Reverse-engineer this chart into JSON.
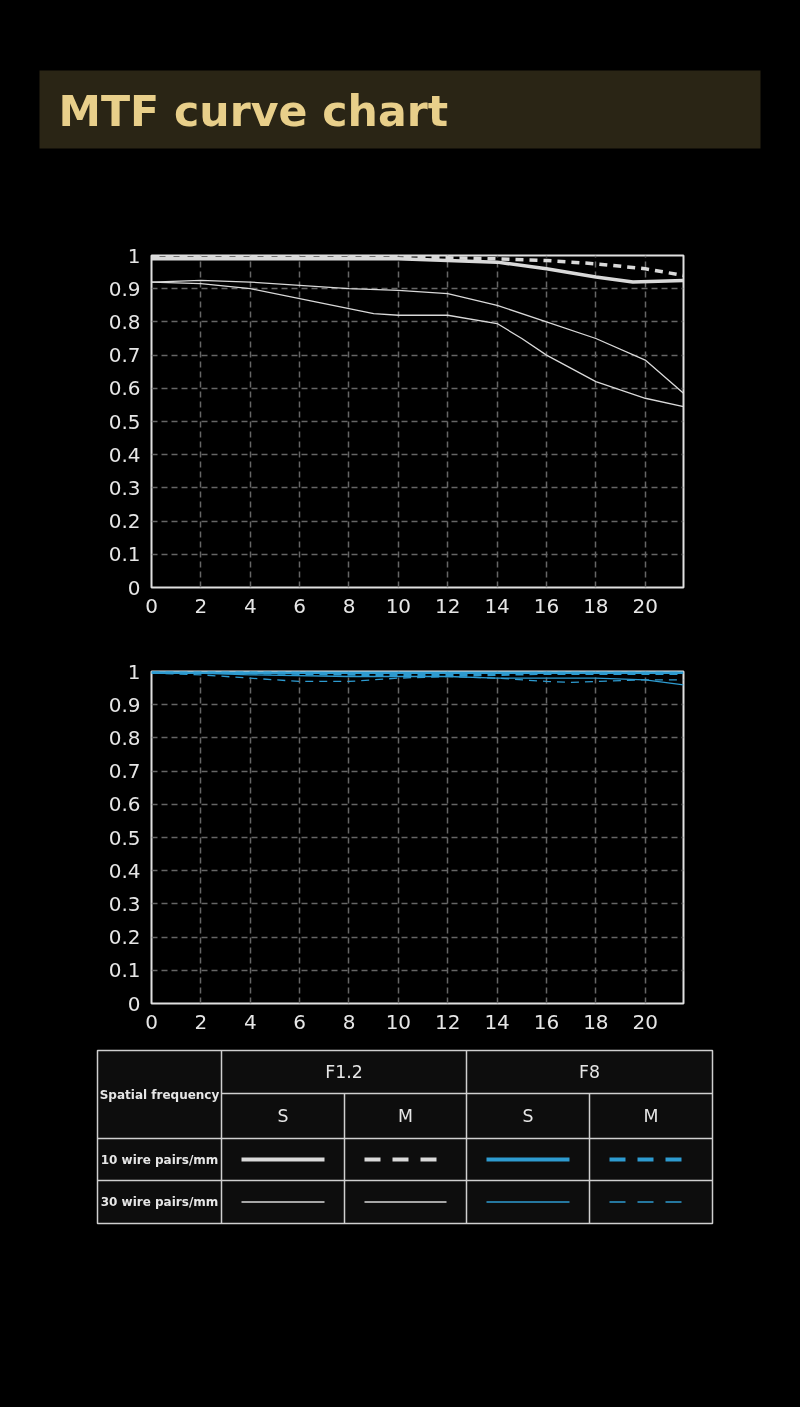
{
  "chart_data": [
    {
      "type": "line",
      "title": "MTF curve chart",
      "xlim": [
        0,
        21.55
      ],
      "ylim": [
        0,
        1
      ],
      "xticks": [
        0,
        2,
        4,
        6,
        8,
        10,
        12,
        14,
        16,
        18,
        20
      ],
      "yticks": [
        0,
        0.1,
        0.2,
        0.3,
        0.4,
        0.5,
        0.6,
        0.7,
        0.8,
        0.9,
        1
      ],
      "grid": true,
      "series": [
        {
          "color": "#d9d9d9",
          "line_style": "solid",
          "x": [
            0,
            2,
            4,
            6,
            8,
            10,
            12,
            14,
            16,
            18,
            19.5,
            21.55
          ],
          "values": [
            0.99,
            0.99,
            0.99,
            0.99,
            0.99,
            0.99,
            0.985,
            0.98,
            0.96,
            0.935,
            0.92,
            0.925
          ]
        },
        {
          "color": "#d9d9d9",
          "line_style": "dashed",
          "x": [
            0,
            2,
            4,
            6,
            8,
            10,
            12,
            14,
            16,
            18,
            20,
            21.55
          ],
          "values": [
            0.995,
            0.995,
            0.995,
            0.995,
            0.995,
            0.995,
            0.993,
            0.99,
            0.985,
            0.975,
            0.96,
            0.94
          ]
        },
        {
          "color": "#d9d9d9",
          "line_style": "solid",
          "x": [
            0,
            2,
            4,
            6,
            8,
            10,
            12,
            14,
            16,
            18,
            20,
            21.55
          ],
          "values": [
            0.92,
            0.925,
            0.92,
            0.91,
            0.9,
            0.895,
            0.885,
            0.85,
            0.8,
            0.75,
            0.685,
            0.585
          ]
        },
        {
          "color": "#d9d9d9",
          "line_style": "solid",
          "x": [
            0,
            2,
            4,
            6,
            8,
            9,
            10,
            12,
            14,
            15,
            16,
            18,
            20,
            21.55
          ],
          "values": [
            0.92,
            0.915,
            0.9,
            0.87,
            0.84,
            0.825,
            0.82,
            0.82,
            0.795,
            0.75,
            0.7,
            0.62,
            0.57,
            0.545
          ]
        }
      ]
    },
    {
      "type": "line",
      "xlim": [
        0,
        21.55
      ],
      "ylim": [
        0,
        1
      ],
      "xticks": [
        0,
        2,
        4,
        6,
        8,
        10,
        12,
        14,
        16,
        18,
        20
      ],
      "yticks": [
        0,
        0.1,
        0.2,
        0.3,
        0.4,
        0.5,
        0.6,
        0.7,
        0.8,
        0.9,
        1
      ],
      "grid": true,
      "series": [
        {
          "color": "#2e9bd0",
          "line_style": "solid",
          "x": [
            0,
            6,
            12,
            18,
            21.55
          ],
          "values": [
            0.998,
            0.998,
            0.998,
            0.998,
            0.998
          ]
        },
        {
          "color": "#2e9bd0",
          "line_style": "dashed",
          "x": [
            0,
            6,
            10,
            13,
            16,
            21.55
          ],
          "values": [
            1.0,
            0.995,
            0.99,
            0.99,
            0.995,
            0.995
          ]
        },
        {
          "color": "#2e9bd0",
          "line_style": "solid",
          "x": [
            0,
            4,
            8,
            12,
            14,
            16,
            18,
            20,
            21.55
          ],
          "values": [
            1.0,
            0.99,
            0.985,
            0.985,
            0.98,
            0.98,
            0.98,
            0.975,
            0.96
          ]
        },
        {
          "color": "#2e9bd0",
          "line_style": "dashed",
          "x": [
            0,
            2,
            4,
            6,
            8,
            10,
            12,
            14,
            16,
            17,
            18,
            20,
            21.55
          ],
          "values": [
            0.995,
            0.99,
            0.98,
            0.97,
            0.97,
            0.98,
            0.985,
            0.98,
            0.97,
            0.967,
            0.97,
            0.975,
            0.975
          ]
        }
      ]
    },
    {
      "type": "other",
      "annotations": [
        "Spatial frequency",
        "F1.2",
        "F8",
        "S",
        "M",
        "S",
        "M",
        "10 wire pairs/mm",
        "30 wire pairs/mm"
      ]
    }
  ]
}
